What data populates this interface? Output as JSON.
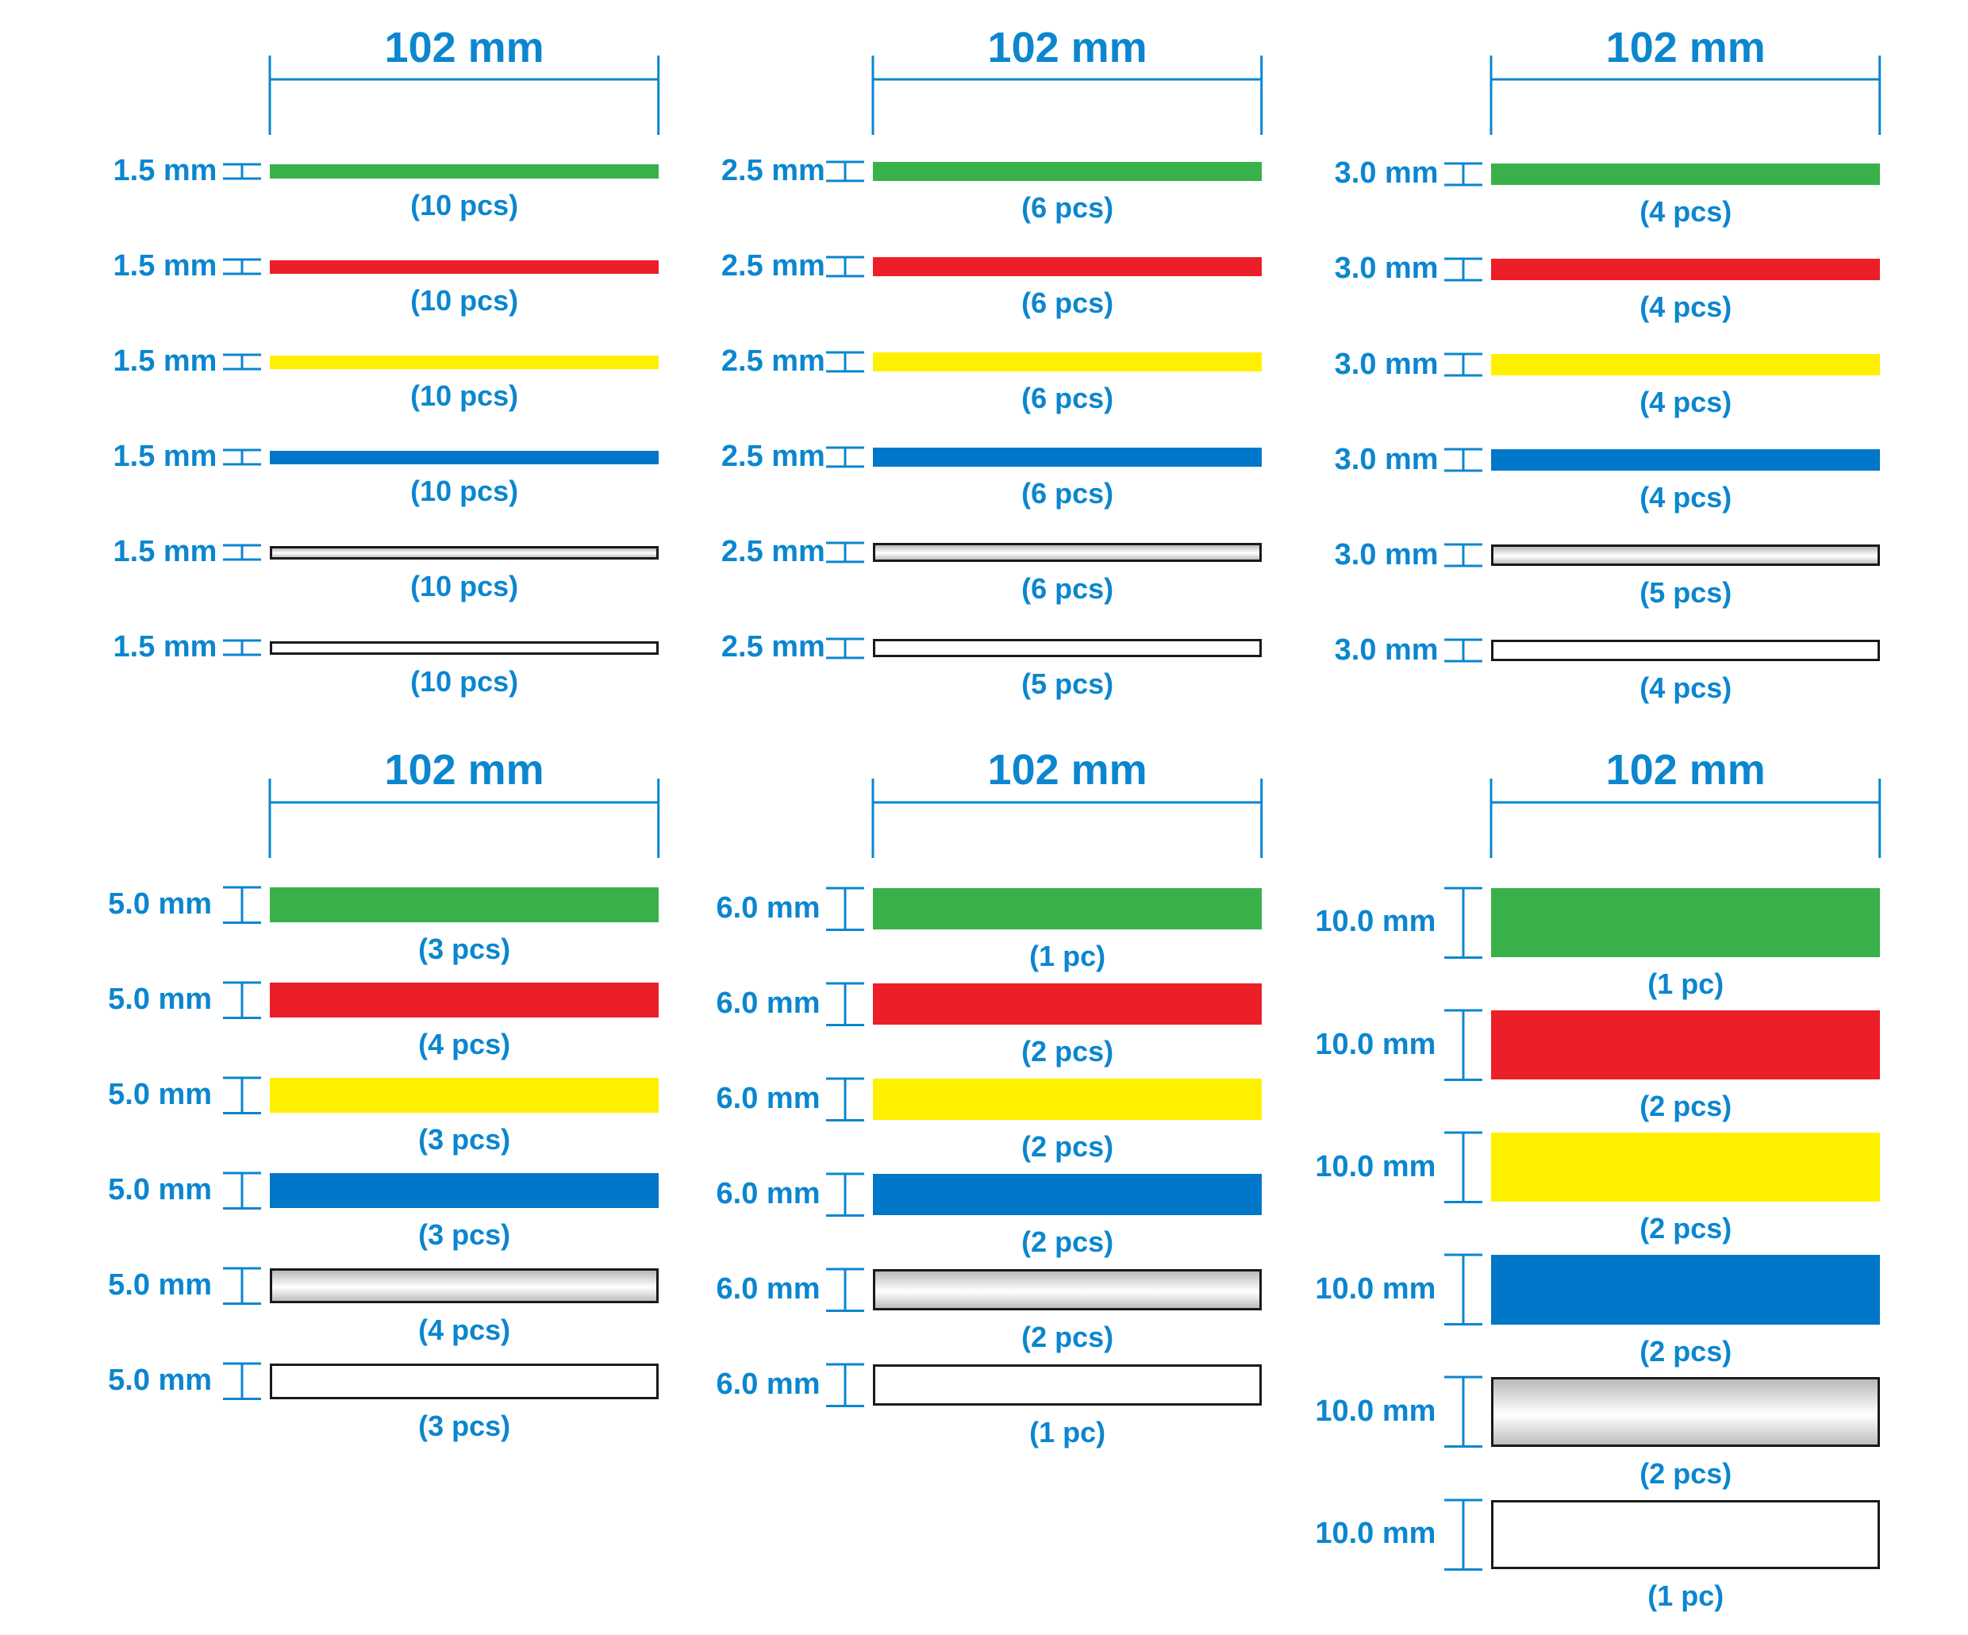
{
  "colors": {
    "text": "#0b86cf",
    "green": "#39b14a",
    "red": "#ec1f28",
    "yellow": "#fff000",
    "blue": "#0077c8"
  },
  "groups": [
    {
      "length": "102 mm",
      "rows": [
        {
          "thickness": "1.5 mm",
          "color": "green",
          "count": "(10 pcs)"
        },
        {
          "thickness": "1.5 mm",
          "color": "red",
          "count": "(10 pcs)"
        },
        {
          "thickness": "1.5 mm",
          "color": "yellow",
          "count": "(10 pcs)"
        },
        {
          "thickness": "1.5 mm",
          "color": "blue",
          "count": "(10 pcs)"
        },
        {
          "thickness": "1.5 mm",
          "color": "silver",
          "count": "(10 pcs)"
        },
        {
          "thickness": "1.5 mm",
          "color": "clear",
          "count": "(10 pcs)"
        }
      ]
    },
    {
      "length": "102 mm",
      "rows": [
        {
          "thickness": "2.5 mm",
          "color": "green",
          "count": "(6 pcs)"
        },
        {
          "thickness": "2.5 mm",
          "color": "red",
          "count": "(6 pcs)"
        },
        {
          "thickness": "2.5 mm",
          "color": "yellow",
          "count": "(6 pcs)"
        },
        {
          "thickness": "2.5 mm",
          "color": "blue",
          "count": "(6 pcs)"
        },
        {
          "thickness": "2.5 mm",
          "color": "silver",
          "count": "(6 pcs)"
        },
        {
          "thickness": "2.5 mm",
          "color": "clear",
          "count": "(5 pcs)"
        }
      ]
    },
    {
      "length": "102 mm",
      "rows": [
        {
          "thickness": "3.0 mm",
          "color": "green",
          "count": "(4 pcs)"
        },
        {
          "thickness": "3.0 mm",
          "color": "red",
          "count": "(4 pcs)"
        },
        {
          "thickness": "3.0 mm",
          "color": "yellow",
          "count": "(4 pcs)"
        },
        {
          "thickness": "3.0 mm",
          "color": "blue",
          "count": "(4 pcs)"
        },
        {
          "thickness": "3.0 mm",
          "color": "silver",
          "count": "(5 pcs)"
        },
        {
          "thickness": "3.0 mm",
          "color": "clear",
          "count": "(4 pcs)"
        }
      ]
    },
    {
      "length": "102 mm",
      "rows": [
        {
          "thickness": "5.0 mm",
          "color": "green",
          "count": "(3 pcs)"
        },
        {
          "thickness": "5.0 mm",
          "color": "red",
          "count": "(4 pcs)"
        },
        {
          "thickness": "5.0 mm",
          "color": "yellow",
          "count": "(3 pcs)"
        },
        {
          "thickness": "5.0 mm",
          "color": "blue",
          "count": "(3 pcs)"
        },
        {
          "thickness": "5.0 mm",
          "color": "silver",
          "count": "(4 pcs)"
        },
        {
          "thickness": "5.0 mm",
          "color": "clear",
          "count": "(3 pcs)"
        }
      ]
    },
    {
      "length": "102 mm",
      "rows": [
        {
          "thickness": "6.0 mm",
          "color": "green",
          "count": "(1 pc)"
        },
        {
          "thickness": "6.0 mm",
          "color": "red",
          "count": "(2 pcs)"
        },
        {
          "thickness": "6.0 mm",
          "color": "yellow",
          "count": "(2 pcs)"
        },
        {
          "thickness": "6.0 mm",
          "color": "blue",
          "count": "(2 pcs)"
        },
        {
          "thickness": "6.0 mm",
          "color": "silver",
          "count": "(2 pcs)"
        },
        {
          "thickness": "6.0 mm",
          "color": "clear",
          "count": "(1 pc)"
        }
      ]
    },
    {
      "length": "102 mm",
      "rows": [
        {
          "thickness": "10.0 mm",
          "color": "green",
          "count": "(1 pc)"
        },
        {
          "thickness": "10.0 mm",
          "color": "red",
          "count": "(2 pcs)"
        },
        {
          "thickness": "10.0 mm",
          "color": "yellow",
          "count": "(2 pcs)"
        },
        {
          "thickness": "10.0 mm",
          "color": "blue",
          "count": "(2 pcs)"
        },
        {
          "thickness": "10.0 mm",
          "color": "silver",
          "count": "(2 pcs)"
        },
        {
          "thickness": "10.0 mm",
          "color": "clear",
          "count": "(1 pc)"
        }
      ]
    }
  ]
}
